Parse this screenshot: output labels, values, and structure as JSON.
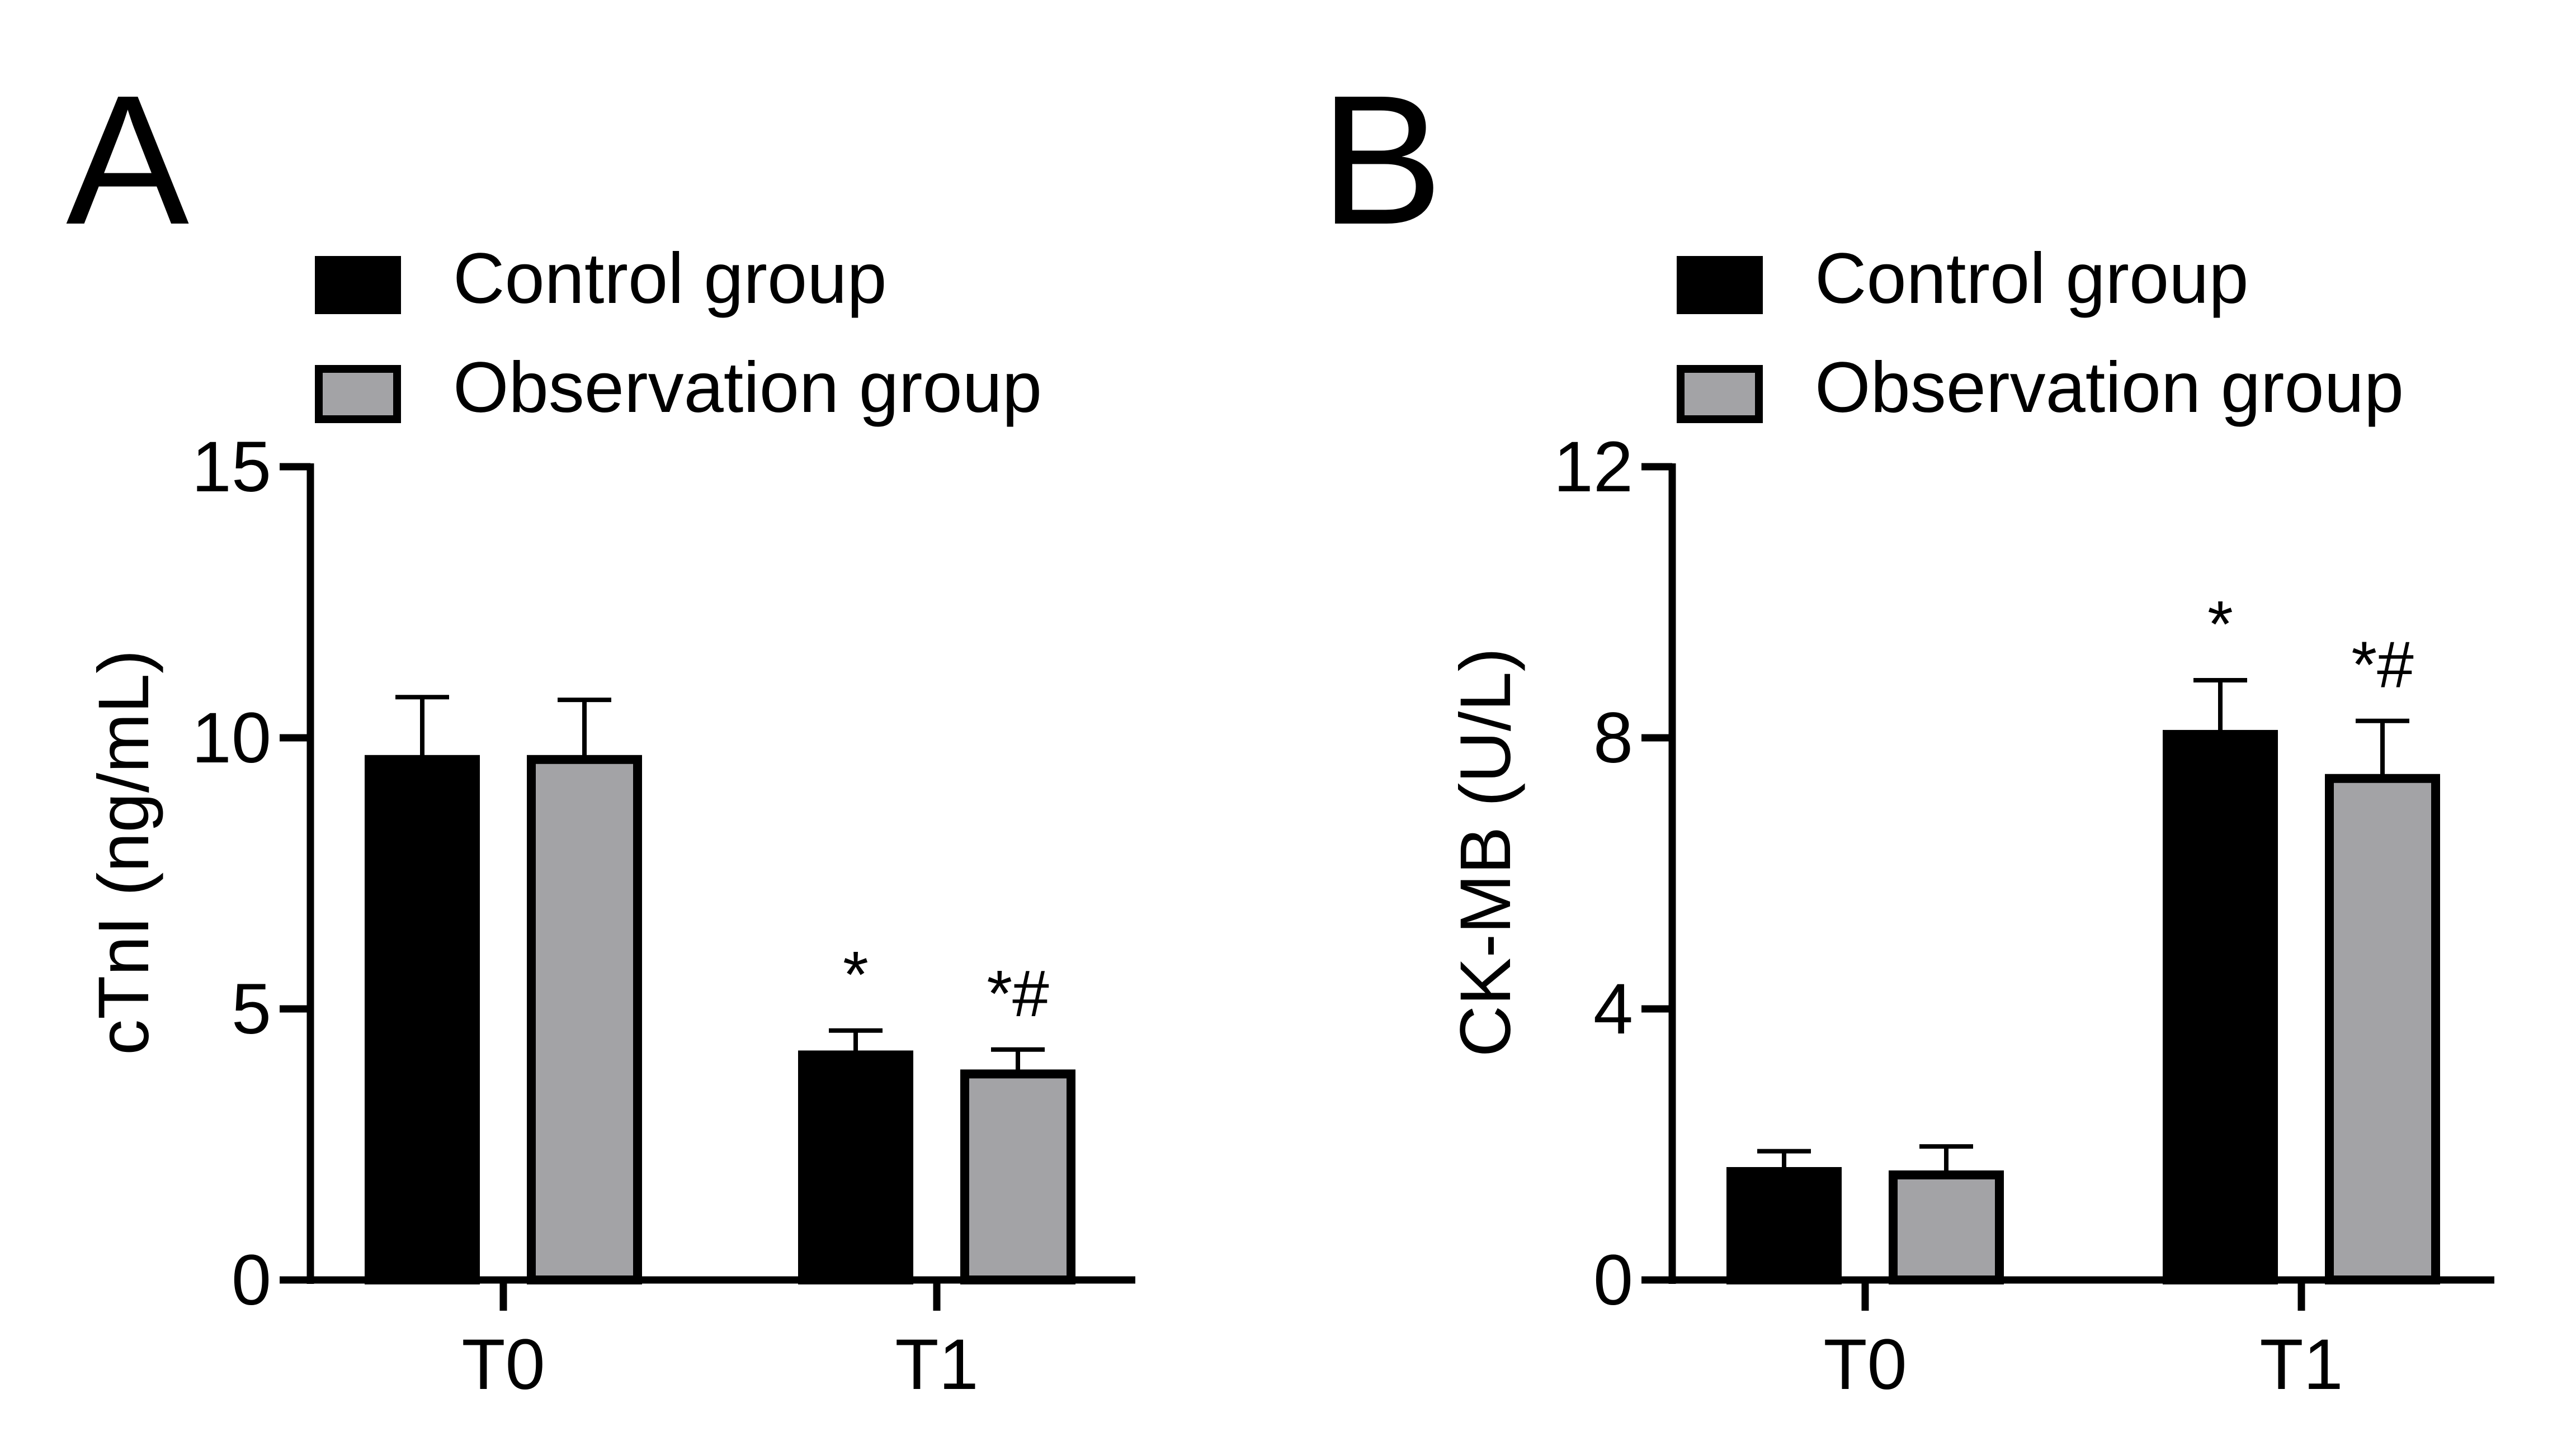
{
  "figure": {
    "panels": [
      {
        "label": "A"
      },
      {
        "label": "B"
      }
    ]
  },
  "colors": {
    "control": "#000000",
    "observation": "#a3a3a6",
    "outline": "#000000",
    "background": "#ffffff"
  },
  "chart_data": [
    {
      "type": "bar",
      "panel": "A",
      "title": "",
      "categories": [
        "T0",
        "T1"
      ],
      "xlabel": "",
      "ylabel": "cTnI (ng/mL)",
      "ylim": [
        0,
        15
      ],
      "yticks": [
        0,
        5,
        10,
        15
      ],
      "ytick_labels": [
        "0",
        "5",
        "10",
        "15"
      ],
      "legend": {
        "placement": "top-left",
        "entries": [
          "Control group",
          "Observation group"
        ]
      },
      "grid": false,
      "series": [
        {
          "name": "Control group",
          "values": [
            9.6,
            4.15
          ],
          "errors": [
            1.15,
            0.45
          ],
          "annotations": [
            "",
            "*"
          ]
        },
        {
          "name": "Observation group",
          "values": [
            9.6,
            3.8
          ],
          "errors": [
            1.1,
            0.45
          ],
          "annotations": [
            "",
            "*#"
          ]
        }
      ]
    },
    {
      "type": "bar",
      "panel": "B",
      "title": "",
      "categories": [
        "T0",
        "T1"
      ],
      "xlabel": "",
      "ylabel": "CK-MB (U/L)",
      "ylim": [
        0,
        12
      ],
      "yticks": [
        0,
        4,
        8,
        12
      ],
      "ytick_labels": [
        "0",
        "4",
        "8",
        "12"
      ],
      "legend": {
        "placement": "top-left",
        "entries": [
          "Control group",
          "Observation group"
        ]
      },
      "grid": false,
      "series": [
        {
          "name": "Control group",
          "values": [
            1.6,
            8.05
          ],
          "errors": [
            0.3,
            0.8
          ],
          "annotations": [
            "",
            "*"
          ]
        },
        {
          "name": "Observation group",
          "values": [
            1.55,
            7.4
          ],
          "errors": [
            0.42,
            0.85
          ],
          "annotations": [
            "",
            "*#"
          ]
        }
      ]
    }
  ]
}
